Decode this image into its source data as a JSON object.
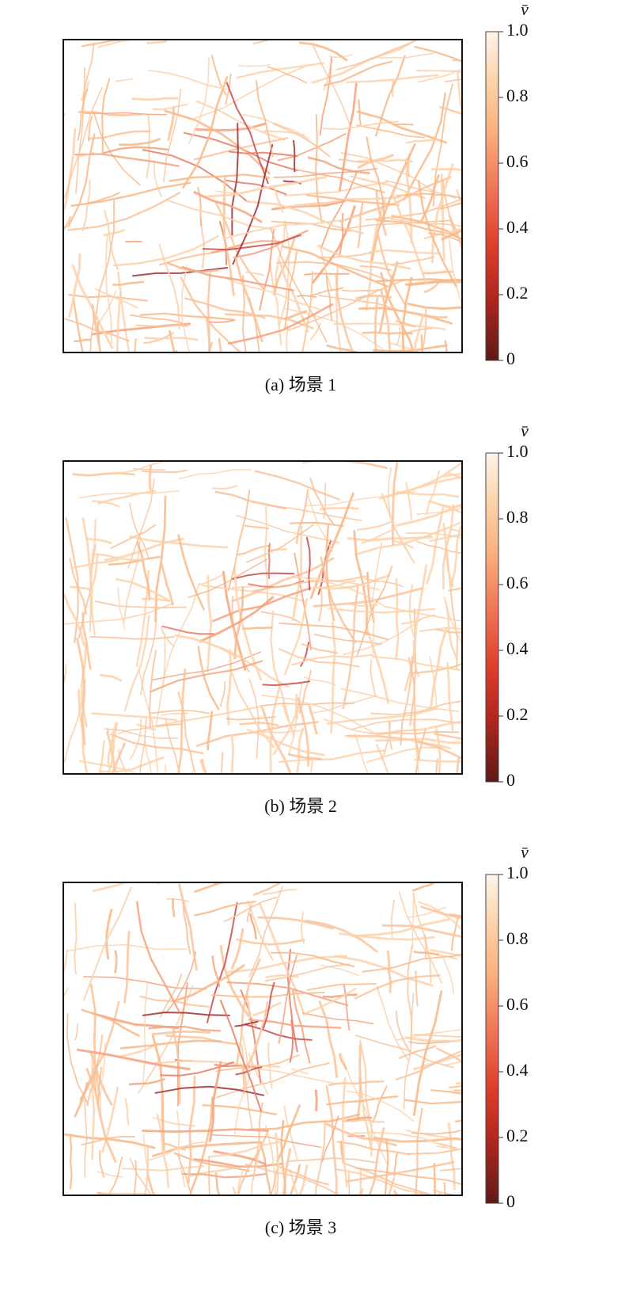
{
  "panels": [
    {
      "caption": "(a) 场景 1",
      "colorbar": {
        "label": "v̄",
        "ticks": [
          0,
          0.2,
          0.4,
          0.6,
          0.8,
          {
            "value": 1,
            "label": "1.0"
          }
        ]
      }
    },
    {
      "caption": "(b) 场景 2",
      "colorbar": {
        "label": "v̄",
        "ticks": [
          0,
          0.2,
          0.4,
          0.6,
          0.8,
          {
            "value": 1,
            "label": "1.0"
          }
        ]
      }
    },
    {
      "caption": "(c) 场景 3",
      "colorbar": {
        "label": "v̄",
        "ticks": [
          0,
          0.2,
          0.4,
          0.6,
          0.8,
          {
            "value": 1,
            "label": "1.0"
          }
        ]
      }
    }
  ]
}
